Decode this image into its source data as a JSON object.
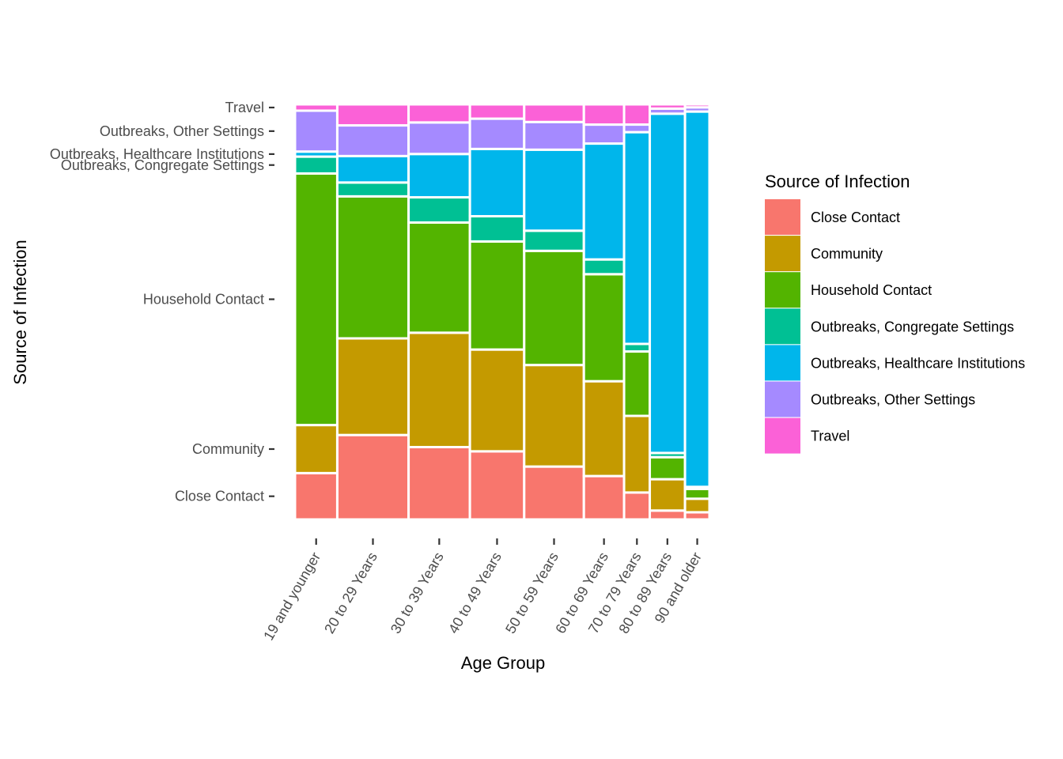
{
  "chart_data": {
    "type": "mosaic",
    "xlabel": "Age Group",
    "ylabel": "Source of Infection",
    "legend_title": "Source of Infection",
    "legend_position": "right",
    "categories": [
      "19 and younger",
      "20 to 29 Years",
      "30 to 39 Years",
      "40 to 49 Years",
      "50 to 59 Years",
      "60 to 69 Years",
      "70 to 79 Years",
      "80 to 89 Years",
      "90 and older"
    ],
    "column_shares": [
      0.102,
      0.172,
      0.148,
      0.131,
      0.144,
      0.097,
      0.062,
      0.085,
      0.059
    ],
    "series": [
      {
        "name": "Close Contact",
        "color": "#F8766D",
        "values": [
          0.11,
          0.201,
          0.172,
          0.162,
          0.126,
          0.103,
          0.064,
          0.021,
          0.017
        ]
      },
      {
        "name": "Community",
        "color": "#C49A00",
        "values": [
          0.114,
          0.23,
          0.272,
          0.242,
          0.242,
          0.225,
          0.182,
          0.074,
          0.032
        ]
      },
      {
        "name": "Household Contact",
        "color": "#53B400",
        "values": [
          0.597,
          0.338,
          0.262,
          0.257,
          0.272,
          0.254,
          0.153,
          0.052,
          0.023
        ]
      },
      {
        "name": "Outbreaks, Congregate Settings",
        "color": "#00C094",
        "values": [
          0.04,
          0.033,
          0.06,
          0.06,
          0.048,
          0.035,
          0.018,
          0.01,
          0.005
        ]
      },
      {
        "name": "Outbreaks, Healthcare Institutions",
        "color": "#00B6EB",
        "values": [
          0.012,
          0.063,
          0.103,
          0.16,
          0.193,
          0.275,
          0.503,
          0.801,
          0.887
        ]
      },
      {
        "name": "Outbreaks, Other Settings",
        "color": "#A58AFF",
        "values": [
          0.097,
          0.073,
          0.075,
          0.072,
          0.066,
          0.045,
          0.018,
          0.012,
          0.01
        ]
      },
      {
        "name": "Travel",
        "color": "#FB61D7",
        "values": [
          0.015,
          0.05,
          0.043,
          0.034,
          0.042,
          0.048,
          0.048,
          0.01,
          0.007
        ]
      }
    ],
    "y_tick_labels": [
      "Close Contact",
      "Community",
      "Household Contact",
      "Outbreaks, Congregate Settings",
      "Outbreaks, Healthcare Institutions",
      "Outbreaks, Other Settings",
      "Travel"
    ],
    "grid": false
  }
}
